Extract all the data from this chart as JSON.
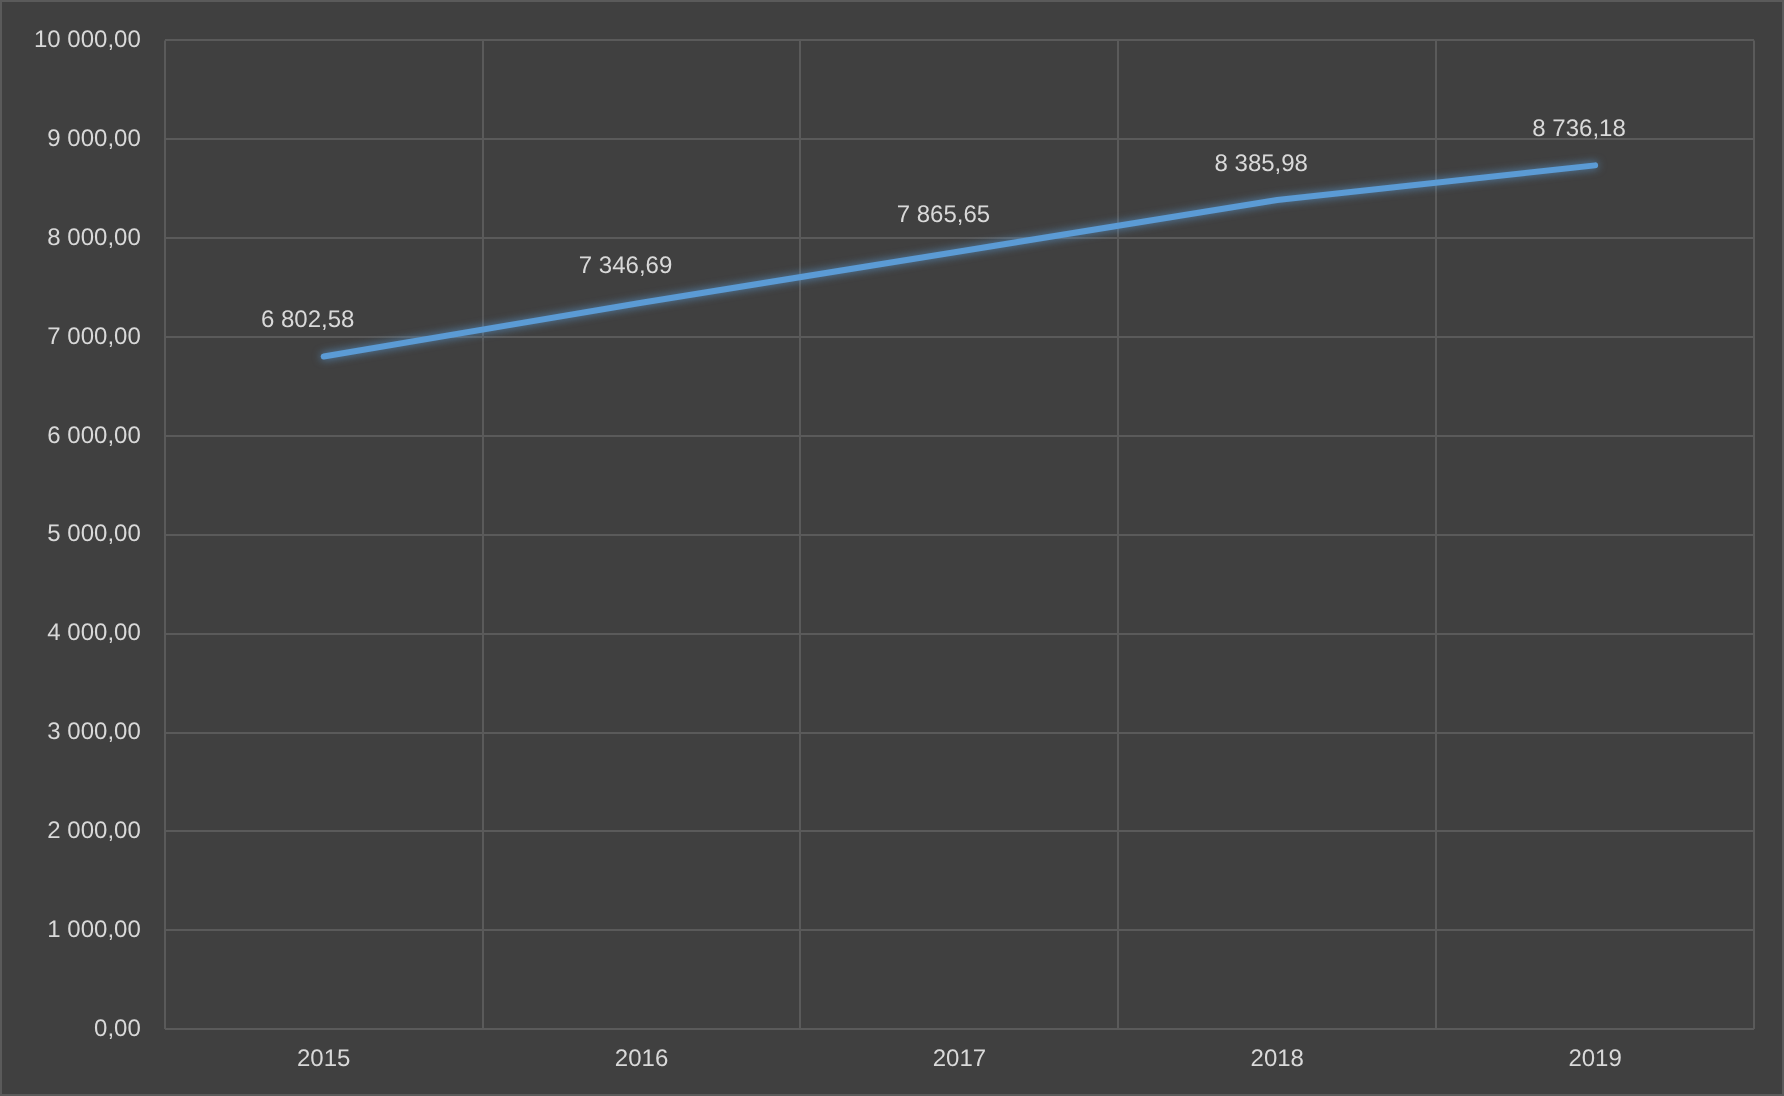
{
  "chart_data": {
    "type": "line",
    "categories": [
      "2015",
      "2016",
      "2017",
      "2018",
      "2019"
    ],
    "series": [
      {
        "color": "#5b9bd5",
        "values": [
          6802.58,
          7346.69,
          7865.65,
          8385.98,
          8736.18
        ],
        "value_labels": [
          "6 802,58",
          "7 346,69",
          "7 865,65",
          "8 385,98",
          "8 736,18"
        ]
      }
    ],
    "ylim": [
      0,
      10000
    ],
    "yticks": [
      {
        "value": 0,
        "label": "0,00"
      },
      {
        "value": 1000,
        "label": "1 000,00"
      },
      {
        "value": 2000,
        "label": "2 000,00"
      },
      {
        "value": 3000,
        "label": "3 000,00"
      },
      {
        "value": 4000,
        "label": "4 000,00"
      },
      {
        "value": 5000,
        "label": "5 000,00"
      },
      {
        "value": 6000,
        "label": "6 000,00"
      },
      {
        "value": 7000,
        "label": "7 000,00"
      },
      {
        "value": 8000,
        "label": "8 000,00"
      },
      {
        "value": 9000,
        "label": "9 000,00"
      },
      {
        "value": 10000,
        "label": "10 000,00"
      }
    ],
    "grid": true,
    "marker": "none",
    "line_style": "solid"
  }
}
